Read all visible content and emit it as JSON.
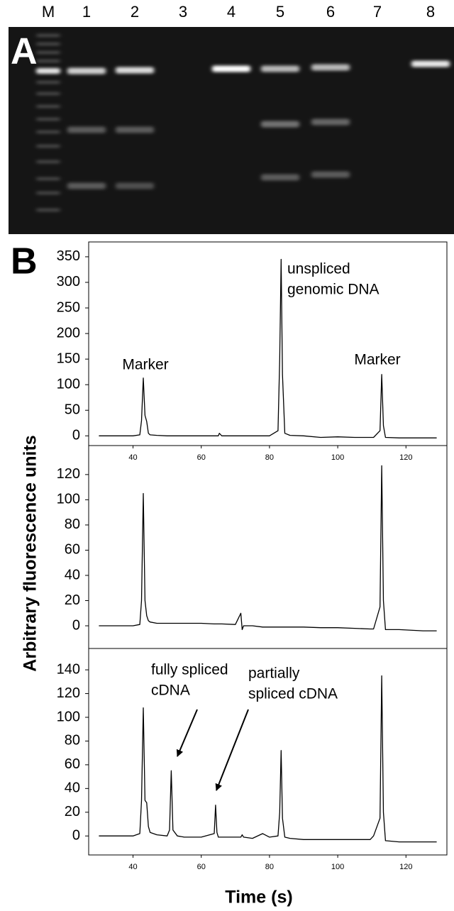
{
  "panel_labels": [
    "A",
    "B"
  ],
  "gel": {
    "lanes": [
      "M",
      "1",
      "2",
      "3",
      "4",
      "5",
      "6",
      "7",
      "8"
    ]
  },
  "axis_labels": {
    "y": "Arbitrary fluorescence units",
    "x": "Time (s)"
  },
  "chart_data": [
    {
      "type": "line",
      "xlim": [
        27,
        132
      ],
      "xticks": [
        40,
        60,
        80,
        100,
        120
      ],
      "ylim": [
        -19,
        379
      ],
      "yticks": [
        0,
        50,
        100,
        150,
        200,
        250,
        300,
        350
      ],
      "x": [
        30,
        35,
        40,
        42,
        42.5,
        43,
        43.5,
        44,
        44.5,
        45,
        47,
        50,
        50.7,
        51.2,
        51.7,
        53,
        55,
        60,
        63.8,
        64.2,
        64.6,
        65,
        65.3,
        66,
        70,
        71.6,
        72,
        72.4,
        75,
        78,
        80,
        82.5,
        83,
        83.4,
        83.8,
        84.5,
        86,
        90,
        95,
        100,
        105,
        109.5,
        110.5,
        112.4,
        112.9,
        113.4,
        114,
        118,
        125,
        129
      ],
      "series": [
        {
          "color": "#000000",
          "values": [
            0,
            0,
            0,
            2,
            30,
            113,
            40,
            28,
            5,
            2,
            1,
            0,
            0,
            0,
            0,
            0,
            0,
            0,
            0,
            0,
            0,
            0,
            5,
            0,
            0,
            0,
            0,
            0,
            0,
            0,
            0,
            10,
            150,
            345,
            120,
            5,
            1,
            0,
            -3,
            -2,
            -3,
            -3,
            -3,
            10,
            120,
            20,
            -3,
            -4,
            -4,
            -4
          ]
        }
      ],
      "annotations": [
        [
          "Marker"
        ],
        [
          "unspliced",
          "genomic DNA"
        ],
        [
          "Marker"
        ]
      ]
    },
    {
      "type": "line",
      "xlim": [
        27,
        132
      ],
      "ylim": [
        -18,
        143
      ],
      "yticks": [
        0,
        20,
        40,
        60,
        80,
        100,
        120
      ],
      "x": [
        30,
        35,
        40,
        42,
        42.5,
        43,
        43.5,
        44,
        44.5,
        45,
        47,
        50,
        50.7,
        51.2,
        51.7,
        53,
        55,
        60,
        63.8,
        64.2,
        64.6,
        65,
        65.3,
        66,
        70,
        71.6,
        72,
        72.4,
        75,
        78,
        80,
        82.5,
        83,
        83.4,
        83.8,
        84.5,
        86,
        90,
        95,
        100,
        105,
        109.5,
        110.5,
        112.4,
        112.9,
        113.4,
        114,
        118,
        125,
        129
      ],
      "series": [
        {
          "color": "#000000",
          "values": [
            0,
            0,
            0,
            1,
            20,
            105,
            20,
            8,
            4,
            3,
            2,
            2,
            2,
            2,
            2,
            2,
            2,
            2,
            1.5,
            1.5,
            1.5,
            1.5,
            1.5,
            1.5,
            1,
            10,
            -3,
            0,
            0,
            -1,
            -1,
            -1,
            -1,
            -1,
            -1,
            -1,
            -1,
            -1,
            -1.5,
            -1.5,
            -2,
            -2.5,
            -2.5,
            15,
            127,
            20,
            -3,
            -3,
            -4,
            -4
          ]
        }
      ]
    },
    {
      "type": "line",
      "xlim": [
        27,
        132
      ],
      "xticks": [
        40,
        60,
        80,
        100,
        120
      ],
      "ylim": [
        -16,
        158
      ],
      "yticks": [
        0,
        20,
        40,
        60,
        80,
        100,
        120,
        140
      ],
      "x": [
        30,
        35,
        40,
        42,
        42.5,
        43,
        43.5,
        44,
        44.5,
        45,
        47,
        50,
        50.7,
        51.2,
        51.7,
        53,
        55,
        60,
        63.8,
        64.2,
        64.6,
        65,
        65.3,
        66,
        70,
        71.6,
        72,
        72.4,
        75,
        78,
        80,
        82.5,
        83,
        83.4,
        83.8,
        84.5,
        86,
        90,
        95,
        100,
        105,
        109.5,
        110.5,
        112.4,
        112.9,
        113.4,
        114,
        118,
        125,
        129
      ],
      "series": [
        {
          "color": "#000000",
          "values": [
            0,
            0,
            0,
            2,
            30,
            108,
            30,
            28,
            8,
            3,
            1,
            0,
            5,
            55,
            5,
            0,
            -1,
            -1,
            2,
            26,
            3,
            -1,
            -1,
            -1,
            -1,
            -1,
            1,
            -1,
            -2,
            2,
            -1,
            0,
            20,
            72,
            15,
            -1,
            -2,
            -3,
            -3,
            -3,
            -3,
            -3,
            0,
            15,
            135,
            20,
            -4,
            -5,
            -5,
            -5
          ]
        }
      ],
      "annotations": [
        [
          "fully spliced",
          "cDNA"
        ],
        [
          "partially",
          "spliced cDNA"
        ]
      ]
    }
  ]
}
